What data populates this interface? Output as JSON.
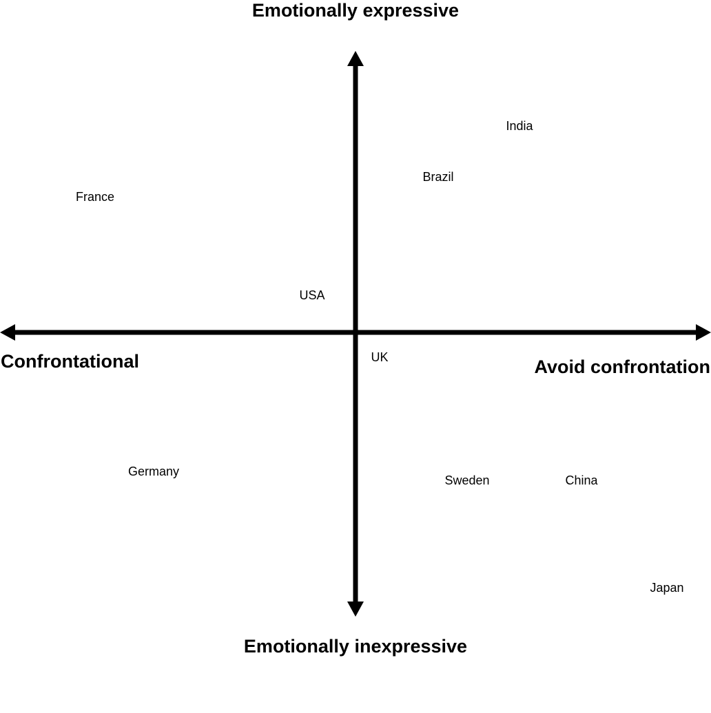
{
  "axes": {
    "top": "Emotionally expressive",
    "bottom": "Emotionally inexpressive",
    "left": "Confrontational",
    "right": "Avoid confrontation"
  },
  "labels": [
    "India",
    "Brazil",
    "France",
    "USA",
    "UK",
    "Germany",
    "Sweden",
    "China",
    "Japan"
  ]
}
